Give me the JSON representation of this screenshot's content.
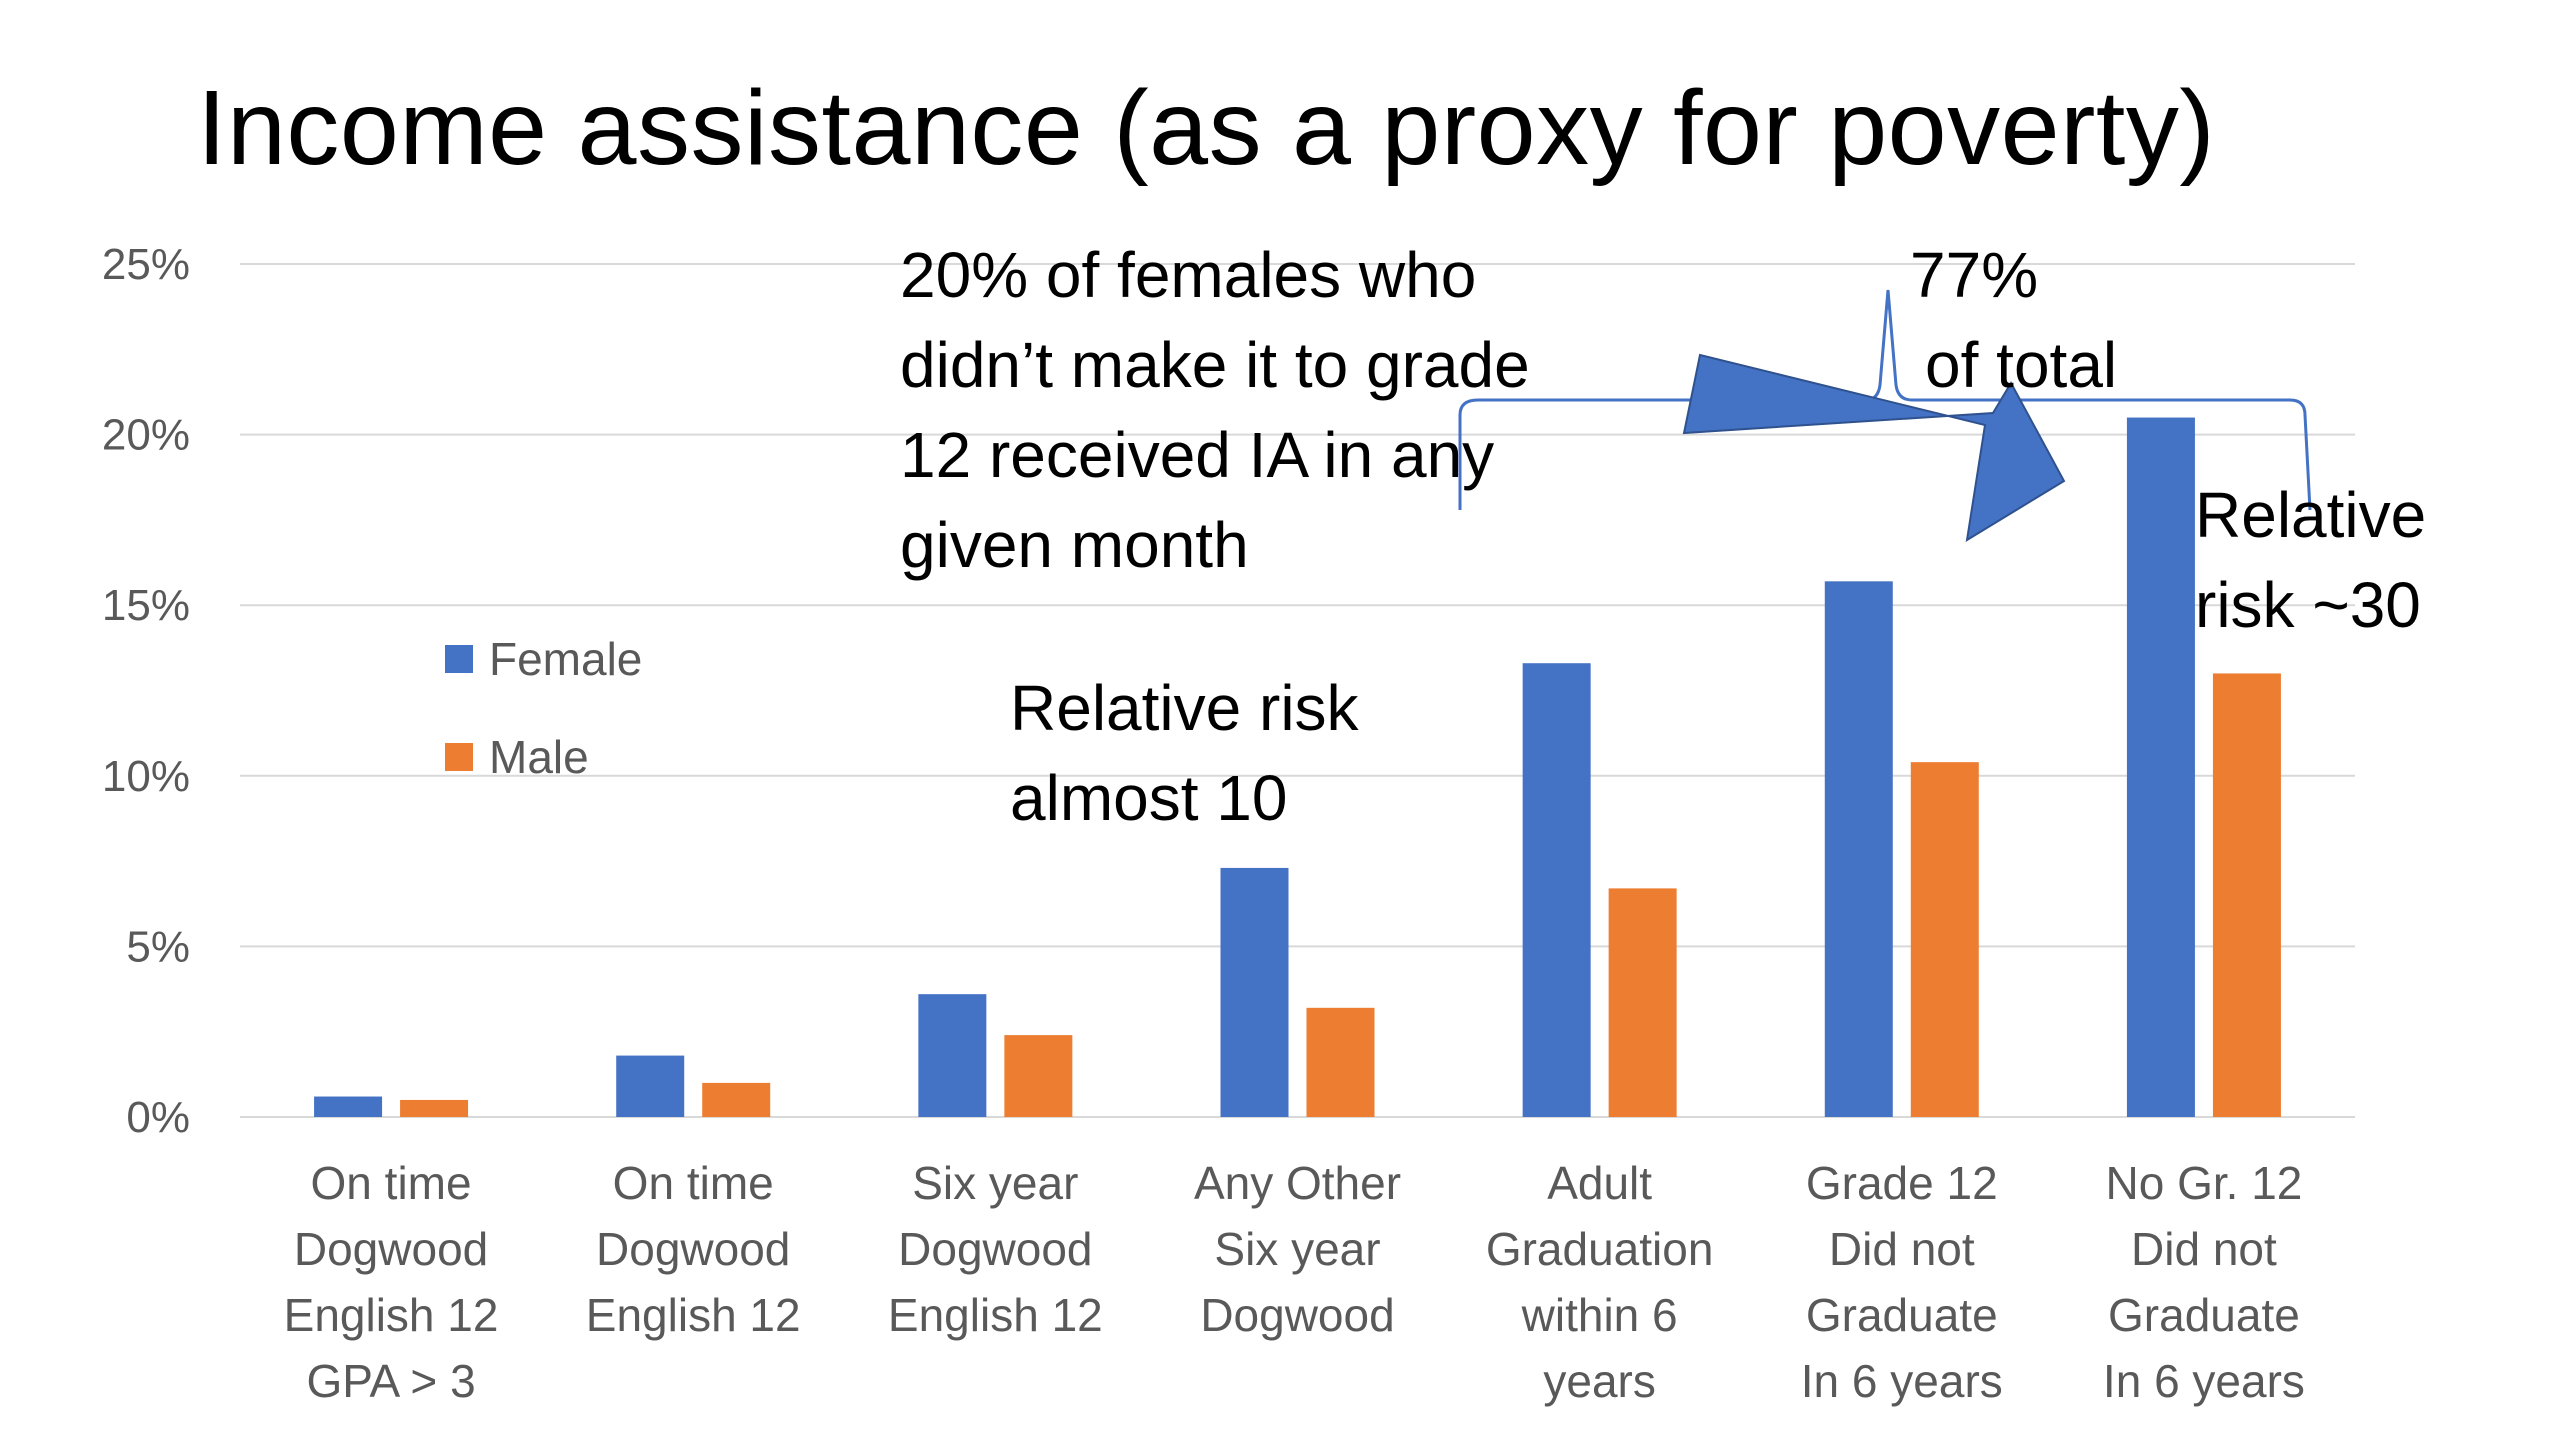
{
  "title": "Income assistance (as a proxy for poverty)",
  "colors": {
    "female": "#4472C4",
    "male": "#ED7D31",
    "gridline": "#D9D9D9",
    "axis_text": "#595959",
    "arrow": "#4472C4"
  },
  "annotations": {
    "females_note": [
      "20% of females who",
      "didn’t make it to grade",
      "12 received IA in any",
      "given month"
    ],
    "relative_risk_10": [
      "Relative risk",
      "almost 10"
    ],
    "relative_risk_30": [
      "Relative",
      "risk ~30"
    ],
    "pct_of_total": [
      "77%",
      "of total"
    ]
  },
  "chart_data": {
    "type": "bar",
    "title": "Income assistance (as a proxy for poverty)",
    "xlabel": "",
    "ylabel": "",
    "ylim": [
      0,
      25
    ],
    "yticks": [
      0,
      5,
      10,
      15,
      20,
      25
    ],
    "ytick_labels": [
      "0%",
      "5%",
      "10%",
      "15%",
      "20%",
      "25%"
    ],
    "grid": true,
    "legend_position": "left, inside plot",
    "categories": [
      "On time\nDogwood\nEnglish 12\nGPA > 3",
      "On  time\nDogwood\nEnglish 12",
      "Six year\nDogwood\nEnglish 12",
      "Any Other\nSix year\nDogwood",
      "Adult\nGraduation\nwithin 6\nyears",
      "Grade 12\nDid not\nGraduate\nIn 6 years",
      "No Gr. 12\nDid not\nGraduate\nIn 6 years"
    ],
    "series": [
      {
        "name": "Female",
        "color": "#4472C4",
        "values": [
          0.6,
          1.8,
          3.6,
          7.3,
          13.3,
          15.7,
          20.5
        ]
      },
      {
        "name": "Male",
        "color": "#ED7D31",
        "values": [
          0.5,
          1.0,
          2.4,
          3.2,
          6.7,
          10.4,
          13.0
        ]
      }
    ]
  }
}
